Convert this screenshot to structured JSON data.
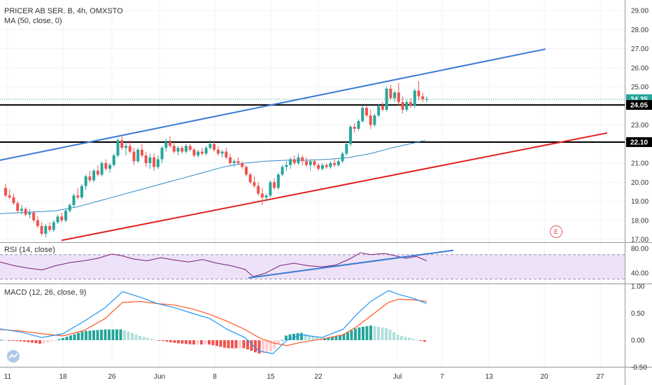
{
  "header": {
    "symbol_line": "PRICER AB SER. B, 4h, OMXSTO",
    "ma_line": "MA (50, close, 0)",
    "rsi_line": "RSI (14, close)",
    "macd_line": "MACD (12, 26, close, 9)",
    "event_marker": "E"
  },
  "colors": {
    "up": "#26a69a",
    "down": "#ef5350",
    "ma": "#2e8bc9",
    "upper_channel": "#3a7bd5",
    "lower_channel": "#e02020",
    "rsi_line": "#7b1f7b",
    "rsi_band": "#ede2f7",
    "macd": "#2196f3",
    "signal": "#ff5722"
  },
  "chart_data": {
    "type": "candlestick",
    "price_axis": {
      "ylim": [
        17,
        29.5
      ],
      "ticks": [
        "29.00",
        "28.00",
        "27.00",
        "26.00",
        "25.00",
        "24.00",
        "23.00",
        "22.00",
        "21.00",
        "20.00",
        "19.00",
        "18.00",
        "17.00"
      ],
      "last_price_label": "24.35",
      "level_labels": [
        "24.05",
        "22.10"
      ]
    },
    "x_axis": {
      "tick_labels": [
        "11",
        "18",
        "26",
        "Jun",
        "8",
        "15",
        "22",
        "Jul",
        "7",
        "13",
        "20",
        "27"
      ]
    },
    "horizontal_levels": [
      24.05,
      22.1
    ],
    "upper_channel": [
      [
        0,
        21.15
      ],
      [
        780,
        26.98
      ]
    ],
    "lower_channel": [
      [
        88,
        16.95
      ],
      [
        868,
        22.58
      ]
    ],
    "candles": [
      [
        19.7,
        19.9,
        19.2,
        19.3
      ],
      [
        19.3,
        19.6,
        19.1,
        19.2
      ],
      [
        19.2,
        19.4,
        18.8,
        18.9
      ],
      [
        18.9,
        19.0,
        18.4,
        18.5
      ],
      [
        18.5,
        18.8,
        18.3,
        18.6
      ],
      [
        18.6,
        18.7,
        18.2,
        18.3
      ],
      [
        18.3,
        18.6,
        18.1,
        18.4
      ],
      [
        18.4,
        18.5,
        17.9,
        18.0
      ],
      [
        18.0,
        18.2,
        17.6,
        17.7
      ],
      [
        17.7,
        17.9,
        17.2,
        17.3
      ],
      [
        17.3,
        17.8,
        17.1,
        17.7
      ],
      [
        17.7,
        17.9,
        17.4,
        17.5
      ],
      [
        17.5,
        18.0,
        17.4,
        17.9
      ],
      [
        17.9,
        18.3,
        17.8,
        18.2
      ],
      [
        18.2,
        18.4,
        17.9,
        18.0
      ],
      [
        18.0,
        18.6,
        17.9,
        18.5
      ],
      [
        18.5,
        18.9,
        18.4,
        18.8
      ],
      [
        18.8,
        19.4,
        18.7,
        19.3
      ],
      [
        19.3,
        19.7,
        19.1,
        19.2
      ],
      [
        19.2,
        19.9,
        19.1,
        19.8
      ],
      [
        19.8,
        20.4,
        19.6,
        20.3
      ],
      [
        20.3,
        20.6,
        20.0,
        20.1
      ],
      [
        20.1,
        20.7,
        20.0,
        20.6
      ],
      [
        20.6,
        20.9,
        20.3,
        20.4
      ],
      [
        20.4,
        21.1,
        20.3,
        21.0
      ],
      [
        21.0,
        21.2,
        20.6,
        20.7
      ],
      [
        20.7,
        21.0,
        20.5,
        20.9
      ],
      [
        20.9,
        21.5,
        20.8,
        21.4
      ],
      [
        21.4,
        22.3,
        21.3,
        22.2
      ],
      [
        22.2,
        22.4,
        21.7,
        21.8
      ],
      [
        21.8,
        22.1,
        21.4,
        21.9
      ],
      [
        21.9,
        22.2,
        21.5,
        21.6
      ],
      [
        21.6,
        21.8,
        20.9,
        21.1
      ],
      [
        21.1,
        21.8,
        21.0,
        21.7
      ],
      [
        21.7,
        22.0,
        21.3,
        21.4
      ],
      [
        21.4,
        21.6,
        20.8,
        21.0
      ],
      [
        21.0,
        21.5,
        20.7,
        21.3
      ],
      [
        21.3,
        21.5,
        20.6,
        20.8
      ],
      [
        20.8,
        21.4,
        20.7,
        21.2
      ],
      [
        21.2,
        21.9,
        21.0,
        21.8
      ],
      [
        21.8,
        22.3,
        21.6,
        22.1
      ],
      [
        22.1,
        22.4,
        21.8,
        21.9
      ],
      [
        21.9,
        22.1,
        21.5,
        21.6
      ],
      [
        21.6,
        21.9,
        21.4,
        21.8
      ],
      [
        21.8,
        21.9,
        21.5,
        21.6
      ],
      [
        21.6,
        22.0,
        21.5,
        21.9
      ],
      [
        21.9,
        22.0,
        21.6,
        21.7
      ],
      [
        21.7,
        21.8,
        21.3,
        21.4
      ],
      [
        21.4,
        21.7,
        21.3,
        21.6
      ],
      [
        21.6,
        21.8,
        21.4,
        21.5
      ],
      [
        21.5,
        21.9,
        21.4,
        21.8
      ],
      [
        21.8,
        22.2,
        21.7,
        22.0
      ],
      [
        22.0,
        22.1,
        21.6,
        21.7
      ],
      [
        21.7,
        21.9,
        21.4,
        21.5
      ],
      [
        21.5,
        21.7,
        21.3,
        21.6
      ],
      [
        21.6,
        21.8,
        21.2,
        21.3
      ],
      [
        21.3,
        21.5,
        20.9,
        21.0
      ],
      [
        21.0,
        21.2,
        20.8,
        21.1
      ],
      [
        21.1,
        21.3,
        20.9,
        21.0
      ],
      [
        21.0,
        21.1,
        20.7,
        20.8
      ],
      [
        20.8,
        20.9,
        20.3,
        20.4
      ],
      [
        20.4,
        20.5,
        19.9,
        20.0
      ],
      [
        20.0,
        20.3,
        19.7,
        19.8
      ],
      [
        19.8,
        20.0,
        19.3,
        19.4
      ],
      [
        19.4,
        19.7,
        18.8,
        19.2
      ],
      [
        19.2,
        19.4,
        19.0,
        19.3
      ],
      [
        19.3,
        20.1,
        19.2,
        20.0
      ],
      [
        20.0,
        20.2,
        19.6,
        19.7
      ],
      [
        19.7,
        20.5,
        19.6,
        20.4
      ],
      [
        20.4,
        20.9,
        20.3,
        20.8
      ],
      [
        20.8,
        21.1,
        20.6,
        20.9
      ],
      [
        20.9,
        21.3,
        20.7,
        21.2
      ],
      [
        21.2,
        21.4,
        20.9,
        21.0
      ],
      [
        21.0,
        21.5,
        20.9,
        21.3
      ],
      [
        21.3,
        21.4,
        20.9,
        21.1
      ],
      [
        21.1,
        21.3,
        20.8,
        20.9
      ],
      [
        20.9,
        21.2,
        20.6,
        21.1
      ],
      [
        21.1,
        21.2,
        20.8,
        20.9
      ],
      [
        20.9,
        21.0,
        20.6,
        20.7
      ],
      [
        20.7,
        21.0,
        20.6,
        20.9
      ],
      [
        20.9,
        21.0,
        20.7,
        20.8
      ],
      [
        20.8,
        21.1,
        20.7,
        21.0
      ],
      [
        21.0,
        21.2,
        20.8,
        20.9
      ],
      [
        20.9,
        21.2,
        20.8,
        21.1
      ],
      [
        21.1,
        21.6,
        21.0,
        21.5
      ],
      [
        21.5,
        22.1,
        21.4,
        22.0
      ],
      [
        22.0,
        23.0,
        21.9,
        22.9
      ],
      [
        22.9,
        23.1,
        22.6,
        22.8
      ],
      [
        22.8,
        23.3,
        22.7,
        23.2
      ],
      [
        23.2,
        24.0,
        23.1,
        23.9
      ],
      [
        23.9,
        24.0,
        23.4,
        23.5
      ],
      [
        23.5,
        23.8,
        22.8,
        23.0
      ],
      [
        23.0,
        23.6,
        22.9,
        23.5
      ],
      [
        23.5,
        24.1,
        23.4,
        24.0
      ],
      [
        24.0,
        24.2,
        23.7,
        23.8
      ],
      [
        23.8,
        25.0,
        23.7,
        24.9
      ],
      [
        24.9,
        25.1,
        24.3,
        24.4
      ],
      [
        24.4,
        24.8,
        24.2,
        24.7
      ],
      [
        24.7,
        25.2,
        24.0,
        24.2
      ],
      [
        24.2,
        24.5,
        23.6,
        23.8
      ],
      [
        23.8,
        24.3,
        23.7,
        24.2
      ],
      [
        24.2,
        24.4,
        23.9,
        24.0
      ],
      [
        24.0,
        24.9,
        23.9,
        24.8
      ],
      [
        24.8,
        25.3,
        24.3,
        24.5
      ],
      [
        24.5,
        24.7,
        24.2,
        24.35
      ],
      [
        24.35,
        24.5,
        24.2,
        24.35
      ]
    ],
    "ma50": [
      [
        0,
        18.35
      ],
      [
        40,
        18.42
      ],
      [
        80,
        18.5
      ],
      [
        110,
        18.7
      ],
      [
        140,
        19.0
      ],
      [
        170,
        19.3
      ],
      [
        200,
        19.6
      ],
      [
        230,
        19.9
      ],
      [
        260,
        20.2
      ],
      [
        290,
        20.5
      ],
      [
        320,
        20.8
      ],
      [
        350,
        21.0
      ],
      [
        380,
        21.1
      ],
      [
        410,
        21.15
      ],
      [
        440,
        21.15
      ],
      [
        470,
        21.2
      ],
      [
        500,
        21.3
      ],
      [
        530,
        21.5
      ],
      [
        560,
        21.8
      ],
      [
        585,
        22.0
      ],
      [
        608,
        22.2
      ]
    ],
    "rsi": {
      "ylim": [
        20,
        90
      ],
      "ticks": [
        "80.00",
        "40.00"
      ],
      "band": [
        30,
        70
      ],
      "series": [
        [
          0,
          58
        ],
        [
          20,
          52
        ],
        [
          40,
          48
        ],
        [
          60,
          45
        ],
        [
          80,
          52
        ],
        [
          100,
          57
        ],
        [
          120,
          60
        ],
        [
          140,
          64
        ],
        [
          160,
          71
        ],
        [
          175,
          68
        ],
        [
          190,
          63
        ],
        [
          210,
          60
        ],
        [
          230,
          65
        ],
        [
          250,
          61
        ],
        [
          270,
          58
        ],
        [
          290,
          62
        ],
        [
          310,
          56
        ],
        [
          330,
          52
        ],
        [
          350,
          46
        ],
        [
          362,
          34
        ],
        [
          380,
          40
        ],
        [
          400,
          52
        ],
        [
          420,
          56
        ],
        [
          440,
          52
        ],
        [
          460,
          50
        ],
        [
          480,
          53
        ],
        [
          500,
          63
        ],
        [
          515,
          73
        ],
        [
          530,
          70
        ],
        [
          550,
          72
        ],
        [
          565,
          68
        ],
        [
          580,
          64
        ],
        [
          595,
          67
        ],
        [
          610,
          60
        ]
      ],
      "trendline": [
        [
          355,
          32
        ],
        [
          648,
          77
        ]
      ]
    },
    "macd": {
      "ylim": [
        -0.5,
        1.0
      ],
      "ticks": [
        "1.00",
        "0.50",
        "0.00",
        "-0.50"
      ],
      "macd_series": [
        [
          0,
          0.21
        ],
        [
          30,
          0.15
        ],
        [
          60,
          0.05
        ],
        [
          90,
          0.12
        ],
        [
          120,
          0.35
        ],
        [
          150,
          0.6
        ],
        [
          175,
          0.9
        ],
        [
          200,
          0.8
        ],
        [
          225,
          0.68
        ],
        [
          250,
          0.6
        ],
        [
          275,
          0.5
        ],
        [
          300,
          0.4
        ],
        [
          325,
          0.2
        ],
        [
          350,
          0.05
        ],
        [
          370,
          -0.2
        ],
        [
          390,
          -0.25
        ],
        [
          410,
          0.0
        ],
        [
          430,
          0.1
        ],
        [
          460,
          0.05
        ],
        [
          490,
          0.2
        ],
        [
          510,
          0.48
        ],
        [
          530,
          0.72
        ],
        [
          555,
          0.92
        ],
        [
          570,
          0.85
        ],
        [
          590,
          0.78
        ],
        [
          610,
          0.68
        ]
      ],
      "signal_series": [
        [
          0,
          0.2
        ],
        [
          30,
          0.17
        ],
        [
          60,
          0.12
        ],
        [
          90,
          0.08
        ],
        [
          120,
          0.18
        ],
        [
          150,
          0.4
        ],
        [
          175,
          0.7
        ],
        [
          200,
          0.72
        ],
        [
          225,
          0.68
        ],
        [
          250,
          0.65
        ],
        [
          275,
          0.58
        ],
        [
          300,
          0.48
        ],
        [
          325,
          0.35
        ],
        [
          350,
          0.2
        ],
        [
          370,
          0.05
        ],
        [
          390,
          -0.05
        ],
        [
          410,
          -0.1
        ],
        [
          430,
          -0.04
        ],
        [
          460,
          0.02
        ],
        [
          490,
          0.1
        ],
        [
          510,
          0.25
        ],
        [
          530,
          0.45
        ],
        [
          555,
          0.7
        ],
        [
          570,
          0.76
        ],
        [
          590,
          0.75
        ],
        [
          610,
          0.72
        ]
      ]
    }
  }
}
